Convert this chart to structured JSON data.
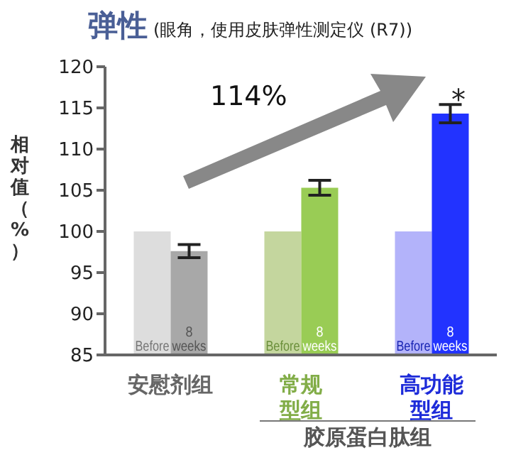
{
  "chart_data": {
    "type": "bar",
    "title": "弹性",
    "subtitle": "(眼角，使用皮肤弹性测定仪 (R7))",
    "ylabel": "相对值（%）",
    "categories": [
      "安慰剂组",
      "常规型组",
      "高功能型组"
    ],
    "series": [
      {
        "name": "Before",
        "colors": [
          "#dddddd",
          "#c4d69e",
          "#b3b3fa"
        ],
        "values": [
          100,
          100,
          100
        ]
      },
      {
        "name": "8 weeks",
        "colors": [
          "#a8a8a8",
          "#99cc55",
          "#2233ff"
        ],
        "values": [
          97.6,
          105.3,
          114.3
        ],
        "errors": [
          0.8,
          0.9,
          1.1
        ]
      }
    ],
    "ylim": [
      85,
      120
    ],
    "yticks": [
      85,
      90,
      95,
      100,
      105,
      110,
      115,
      120
    ],
    "grid": false,
    "legend": false,
    "annotations": [
      "114%",
      "*",
      "胶原蛋白肽组"
    ]
  }
}
